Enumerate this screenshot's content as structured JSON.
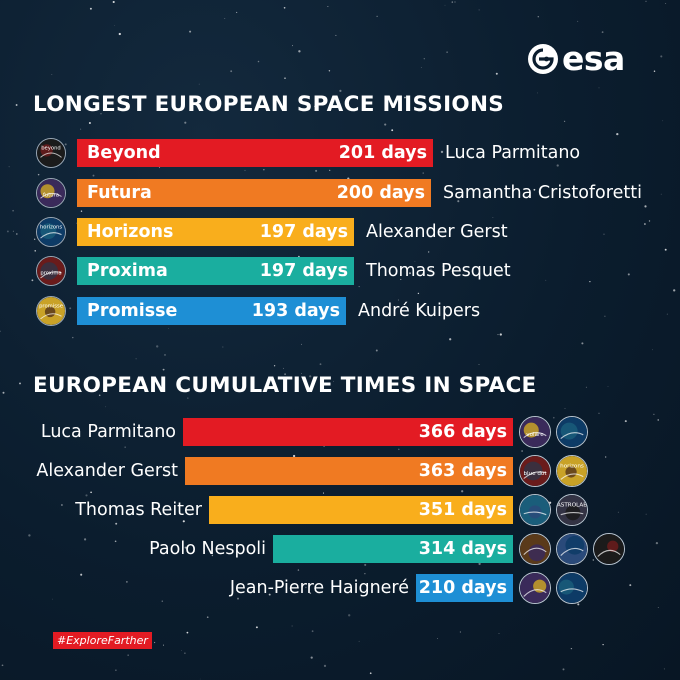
{
  "brand": {
    "name": "esa"
  },
  "colors": {
    "red": "#e31b23",
    "orange": "#f07a22",
    "yellow": "#f9ae1c",
    "teal": "#1aae9f",
    "blue": "#1e8fd5",
    "background": "#0b1d2e"
  },
  "chart_data": [
    {
      "type": "bar",
      "orientation": "horizontal",
      "title": "LONGEST EUROPEAN SPACE MISSIONS",
      "categories": [
        "Beyond",
        "Futura",
        "Horizons",
        "Proxima",
        "Promisse"
      ],
      "values": [
        201,
        200,
        197,
        197,
        193
      ],
      "value_labels": [
        "201 days",
        "200 days",
        "197 days",
        "197 days",
        "193 days"
      ],
      "astronauts": [
        "Luca Parmitano",
        "Samantha Cristoforetti",
        "Alexander Gerst",
        "Thomas Pesquet",
        "André Kuipers"
      ],
      "colors": [
        "#e31b23",
        "#f07a22",
        "#f9ae1c",
        "#1aae9f",
        "#1e8fd5"
      ],
      "badge_icons": [
        "beyond-patch-icon",
        "futura-patch-icon",
        "horizons-patch-icon",
        "proxima-patch-icon",
        "promisse-patch-icon"
      ],
      "badge_texts": [
        "beyond",
        "futura",
        "horizons",
        "proxima",
        "promisse"
      ]
    },
    {
      "type": "bar",
      "orientation": "horizontal",
      "title": "EUROPEAN CUMULATIVE TIMES IN SPACE",
      "categories": [
        "Luca Parmitano",
        "Alexander Gerst",
        "Thomas Reiter",
        "Paolo Nespoli",
        "Jean-Pierre Haigneré"
      ],
      "values": [
        366,
        363,
        351,
        314,
        210
      ],
      "value_labels": [
        "366 days",
        "363 days",
        "351 days",
        "314 days",
        "210 days"
      ],
      "colors": [
        "#e31b23",
        "#f07a22",
        "#f9ae1c",
        "#1aae9f",
        "#1e8fd5"
      ],
      "mission_patches": [
        [
          "volare-patch-icon",
          "beyond-patch-icon"
        ],
        [
          "blue-dot-patch-icon",
          "horizons-patch-icon"
        ],
        [
          "euromir-95-patch-icon",
          "astrolab-patch-icon"
        ],
        [
          "esperia-patch-icon",
          "magisstra-patch-icon",
          "vita-patch-icon"
        ],
        [
          "altair-patch-icon",
          "perseus-patch-icon"
        ]
      ],
      "patch_texts": [
        [
          "volare",
          ""
        ],
        [
          "blue dot",
          "horizons"
        ],
        [
          "",
          "ASTROLAB"
        ],
        [
          "",
          "",
          ""
        ],
        [
          "",
          ""
        ]
      ]
    }
  ],
  "hashtag": "#ExploreFarther"
}
